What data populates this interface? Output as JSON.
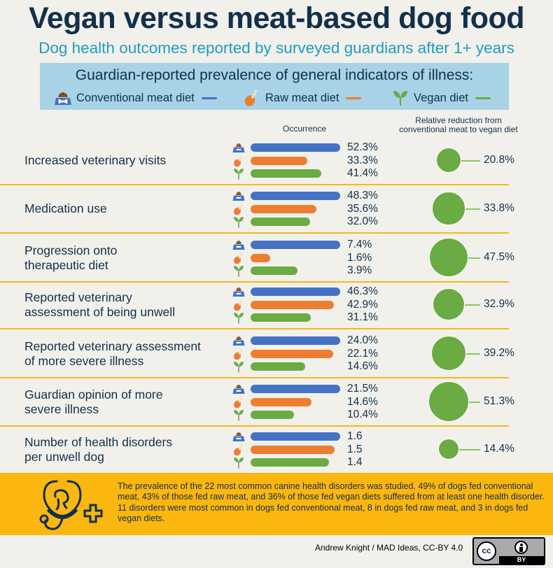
{
  "header": {
    "title": "Vegan versus meat-based dog food",
    "subtitle": "Dog health outcomes reported by surveyed guardians after 1+ years"
  },
  "legend": {
    "title": "Guardian-reported prevalence of general indicators of illness:",
    "items": [
      {
        "label": "Conventional meat diet",
        "icon": "dog-bowl-icon",
        "color": "#4472c4"
      },
      {
        "label": "Raw meat diet",
        "icon": "chicken-drumstick-icon",
        "color": "#ed7d31"
      },
      {
        "label": "Vegan diet",
        "icon": "sprout-icon",
        "color": "#6aab43"
      }
    ]
  },
  "columns": {
    "occurrence": "Occurrence",
    "reduction_line1": "Relative reduction from",
    "reduction_line2": "conventional meat to vegan diet"
  },
  "chart_data": {
    "type": "bar",
    "title": "Guardian-reported prevalence of general indicators of illness",
    "note": "Bars are scaled per row relative to the conventional meat value; bubble size reflects relative reduction",
    "categories": [
      "Increased veterinary visits",
      "Medication use",
      "Progression onto therapeutic diet",
      "Reported veterinary assessment of being unwell",
      "Reported veterinary assessment of more severe illness",
      "Guardian opinion of more severe illness",
      "Number of health disorders per unwell dog"
    ],
    "series": [
      {
        "name": "Conventional meat diet",
        "color": "#4472c4",
        "values": [
          52.3,
          48.3,
          7.4,
          46.3,
          24.0,
          21.5,
          1.6
        ]
      },
      {
        "name": "Raw meat diet",
        "color": "#ed7d31",
        "values": [
          33.3,
          35.6,
          1.6,
          42.9,
          22.1,
          14.6,
          1.5
        ]
      },
      {
        "name": "Vegan diet",
        "color": "#6aab43",
        "values": [
          41.4,
          32.0,
          3.9,
          31.1,
          14.6,
          10.4,
          1.4
        ]
      }
    ],
    "relative_reduction": [
      20.8,
      33.8,
      47.5,
      32.9,
      39.2,
      51.3,
      14.4
    ],
    "units": [
      "%",
      "%",
      "%",
      "%",
      "%",
      "%",
      ""
    ]
  },
  "rows": [
    {
      "label_lines": [
        "Increased veterinary visits"
      ],
      "values": [
        "52.3%",
        "33.3%",
        "41.4%"
      ],
      "reduction": "20.8%"
    },
    {
      "label_lines": [
        "Medication use"
      ],
      "values": [
        "48.3%",
        "35.6%",
        "32.0%"
      ],
      "reduction": "33.8%"
    },
    {
      "label_lines": [
        "Progression onto",
        "therapeutic diet"
      ],
      "values": [
        "7.4%",
        "1.6%",
        "3.9%"
      ],
      "reduction": "47.5%"
    },
    {
      "label_lines": [
        "Reported veterinary",
        "assessment of being unwell"
      ],
      "values": [
        "46.3%",
        "42.9%",
        "31.1%"
      ],
      "reduction": "32.9%"
    },
    {
      "label_lines": [
        "Reported veterinary assessment",
        "of more severe illness"
      ],
      "values": [
        "24.0%",
        "22.1%",
        "14.6%"
      ],
      "reduction": "39.2%"
    },
    {
      "label_lines": [
        "Guardian opinion of more",
        "severe illness"
      ],
      "values": [
        "21.5%",
        "14.6%",
        "10.4%"
      ],
      "reduction": "51.3%"
    },
    {
      "label_lines": [
        "Number of health disorders",
        "per unwell dog"
      ],
      "values": [
        "1.6",
        "1.5",
        "1.4"
      ],
      "reduction": "14.4%"
    }
  ],
  "footer": {
    "icon": "stethoscope-heart-dog-icon",
    "text": "The prevalence of the 22 most common canine health disorders was studied. 49% of dogs fed conventional meat, 43% of those fed raw meat, and 36% of those fed vegan diets suffered from at least one health disorder. 11 disorders were most common in dogs fed conventional meat, 8 in dogs fed raw meat, and 3 in dogs fed vegan diets."
  },
  "credit": {
    "text": "Andrew Knight / MAD Ideas, CC-BY 4.0",
    "badge_cc": "cc",
    "badge_by": "BY"
  }
}
